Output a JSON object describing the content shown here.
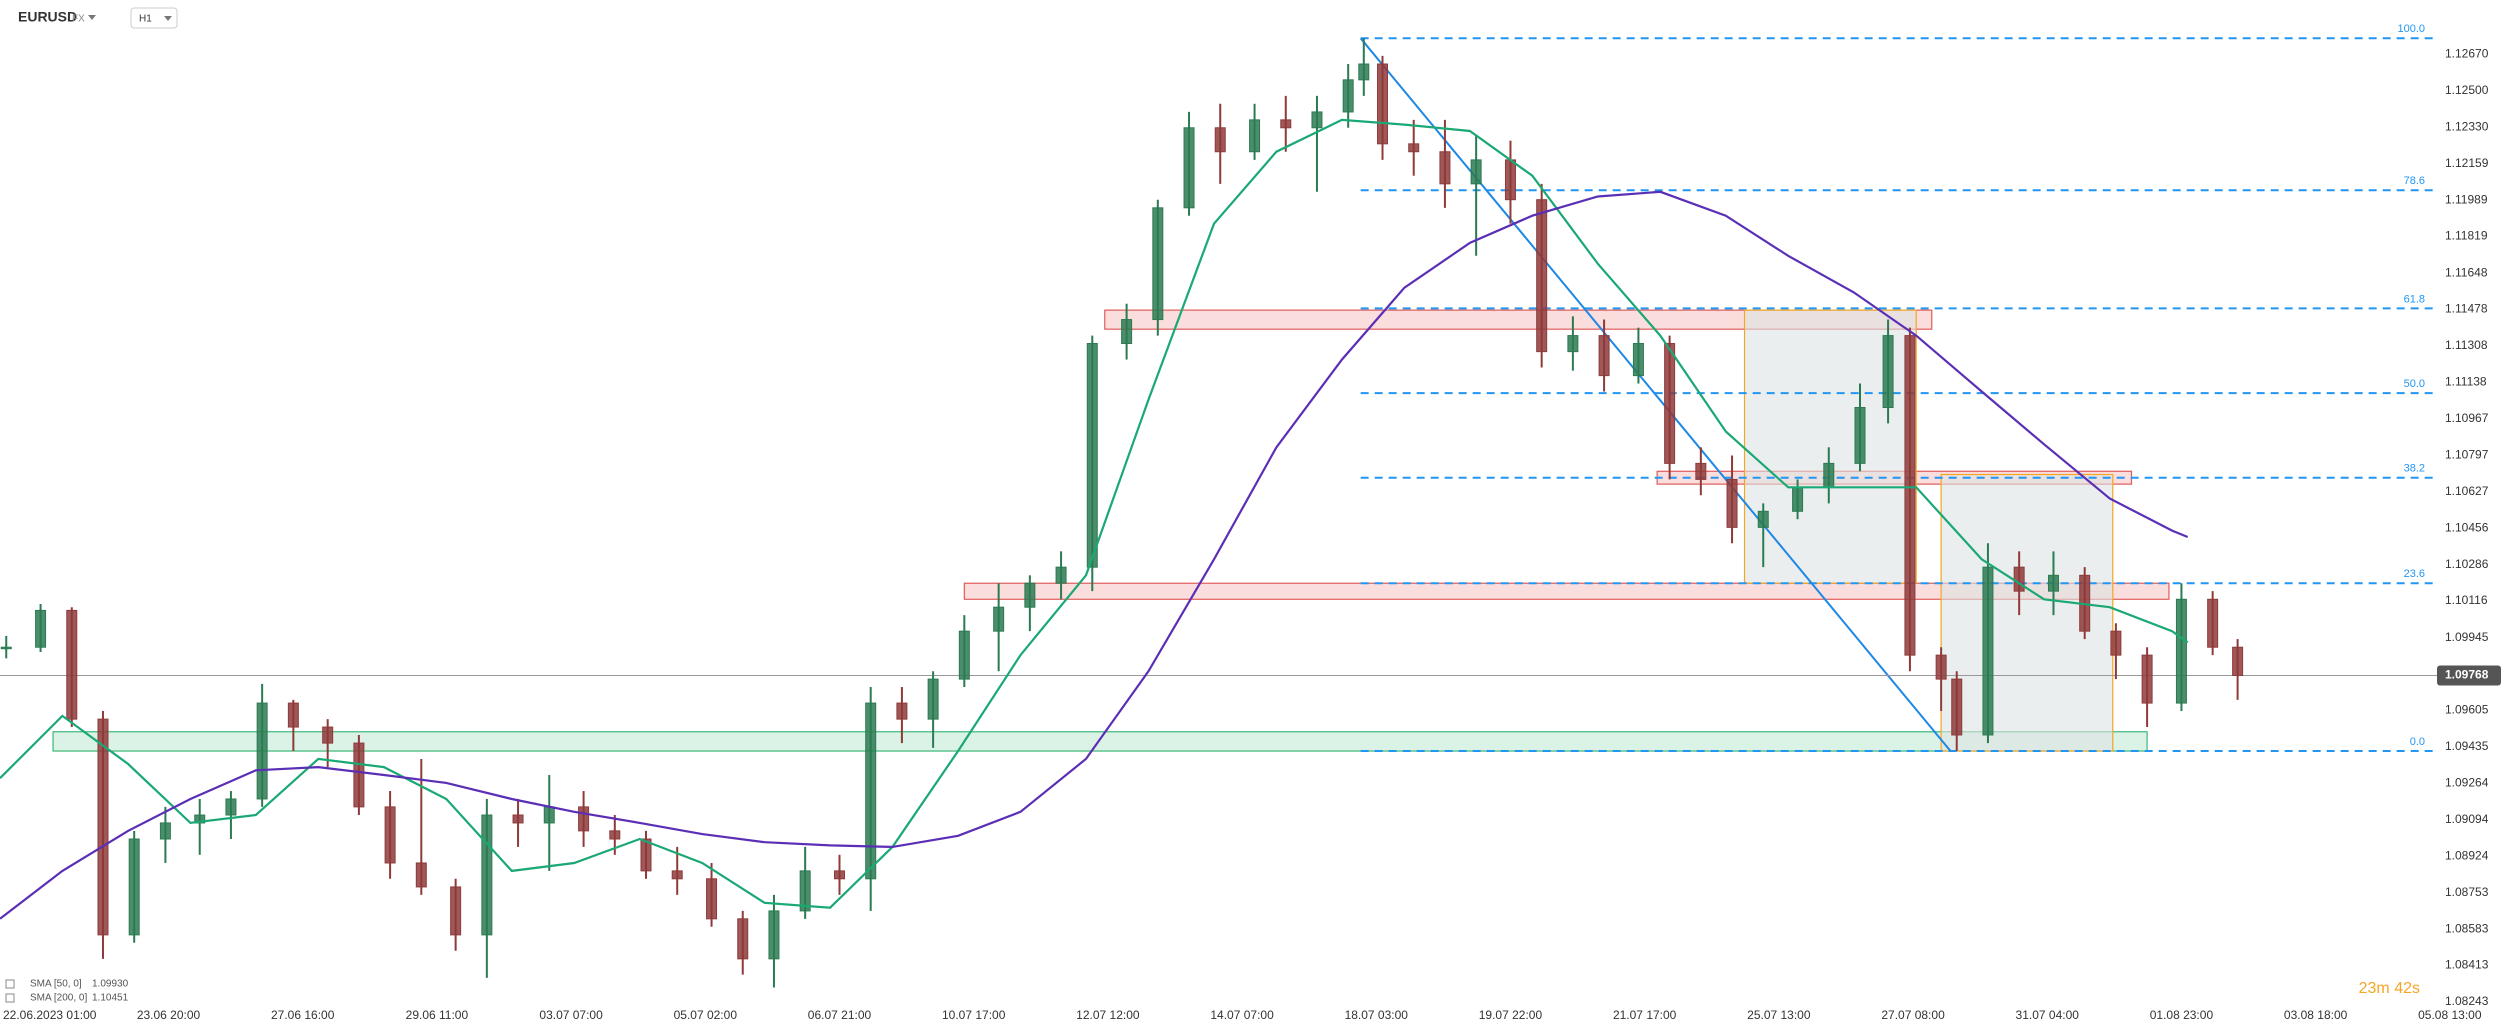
{
  "chart_data": {
    "type": "candlestick",
    "symbol": "EURUSD",
    "market": "FX",
    "timeframe": "H1",
    "up_color": "#2b7a52",
    "down_color": "#8e3a3a",
    "x": [
      -9,
      2,
      12,
      22,
      32,
      42,
      53,
      63,
      73,
      83,
      94,
      104,
      114,
      124,
      135,
      145,
      155,
      165,
      176,
      186,
      196,
      206,
      217,
      227,
      237,
      247,
      258,
      268,
      278,
      288,
      298,
      309,
      319,
      329,
      339,
      350,
      360,
      370,
      380,
      391,
      401,
      411,
      421,
      426,
      432,
      442,
      452,
      462,
      473,
      483,
      493,
      503,
      514,
      524,
      534,
      544,
      554,
      565,
      575,
      585,
      594,
      601,
      611,
      616,
      626,
      636,
      647,
      657,
      667,
      677,
      688,
      698,
      706
    ],
    "open": [
      1.099,
      1.099,
      1.10072,
      1.09564,
      1.08556,
      1.09004,
      1.09079,
      1.09116,
      1.09191,
      1.09639,
      1.09527,
      1.09452,
      1.09154,
      1.08892,
      1.0878,
      1.08556,
      1.09116,
      1.09079,
      1.09154,
      1.09042,
      1.09004,
      1.08855,
      1.08818,
      1.08631,
      1.08444,
      1.08668,
      1.08855,
      1.08818,
      1.09639,
      1.09564,
      1.09751,
      1.09975,
      1.10087,
      1.10199,
      1.10274,
      1.11319,
      1.11431,
      1.11953,
      1.12327,
      1.12215,
      1.12364,
      1.12327,
      1.12401,
      1.12551,
      1.12625,
      1.12252,
      1.12215,
      1.12065,
      1.12177,
      1.11991,
      1.11281,
      1.11356,
      1.11169,
      1.11319,
      1.10759,
      1.10684,
      1.1046,
      1.10535,
      1.10647,
      1.10759,
      1.1102,
      1.11356,
      1.09863,
      1.09751,
      1.0949,
      1.10274,
      1.10162,
      1.10236,
      1.09975,
      1.09863,
      1.09639,
      1.10124,
      1.099
    ],
    "high": [
      1.09953,
      1.10102,
      1.10087,
      1.09602,
      1.09042,
      1.09154,
      1.09191,
      1.09228,
      1.09729,
      1.09654,
      1.09564,
      1.0949,
      1.09228,
      1.09378,
      1.08818,
      1.09191,
      1.09191,
      1.09303,
      1.09228,
      1.09116,
      1.09042,
      1.08967,
      1.08892,
      1.08668,
      1.08743,
      1.08967,
      1.0893,
      1.09714,
      1.09714,
      1.09788,
      1.1005,
      1.10199,
      1.10236,
      1.10348,
      1.11356,
      1.11505,
      1.11991,
      1.12401,
      1.12439,
      1.12439,
      1.12476,
      1.12476,
      1.12625,
      1.12745,
      1.12663,
      1.12364,
      1.12364,
      1.12289,
      1.12267,
      1.12065,
      1.11446,
      1.11431,
      1.11393,
      1.11356,
      1.10834,
      1.10796,
      1.10572,
      1.10684,
      1.10834,
      1.11132,
      1.11431,
      1.11393,
      1.099,
      1.09788,
      1.10386,
      1.10348,
      1.10348,
      1.10274,
      1.10012,
      1.099,
      1.10199,
      1.10162,
      1.09938
    ],
    "low": [
      1.09848,
      1.09878,
      1.09527,
      1.08444,
      1.08519,
      1.08892,
      1.0893,
      1.09004,
      1.09154,
      1.09415,
      1.0934,
      1.09116,
      1.08818,
      1.08743,
      1.08482,
      1.08355,
      1.08967,
      1.08855,
      1.08967,
      1.0893,
      1.08818,
      1.08743,
      1.08594,
      1.0837,
      1.0831,
      1.08631,
      1.08743,
      1.08668,
      1.09452,
      1.0943,
      1.09714,
      1.09788,
      1.09975,
      1.10124,
      1.10162,
      1.11244,
      1.11356,
      1.11916,
      1.12065,
      1.12177,
      1.12215,
      1.12028,
      1.12327,
      1.12476,
      1.12177,
      1.12103,
      1.11953,
      1.11729,
      1.11879,
      1.11207,
      1.11192,
      1.11095,
      1.11132,
      1.10684,
      1.1061,
      1.10386,
      1.10274,
      1.10498,
      1.10572,
      1.10722,
      1.10946,
      1.09788,
      1.09602,
      1.09415,
      1.09452,
      1.1005,
      1.1005,
      1.09938,
      1.09751,
      1.09527,
      1.09602,
      1.09863,
      1.09654
    ],
    "close": [
      1.099,
      1.10072,
      1.09564,
      1.08556,
      1.09004,
      1.09079,
      1.09116,
      1.09191,
      1.09639,
      1.09527,
      1.09452,
      1.09154,
      1.08892,
      1.0878,
      1.08556,
      1.09116,
      1.09079,
      1.09154,
      1.09042,
      1.09004,
      1.08855,
      1.08818,
      1.08631,
      1.08444,
      1.08668,
      1.08855,
      1.08818,
      1.09639,
      1.09564,
      1.09751,
      1.09975,
      1.10087,
      1.10199,
      1.10274,
      1.11319,
      1.11431,
      1.11953,
      1.12327,
      1.12215,
      1.12364,
      1.12327,
      1.12401,
      1.12551,
      1.12625,
      1.12252,
      1.12215,
      1.12065,
      1.12177,
      1.11991,
      1.11281,
      1.11356,
      1.11169,
      1.11319,
      1.10759,
      1.10684,
      1.1046,
      1.10535,
      1.10647,
      1.10759,
      1.1102,
      1.11356,
      1.09863,
      1.09751,
      1.0949,
      1.10274,
      1.10162,
      1.10236,
      1.09975,
      1.09863,
      1.09639,
      1.10124,
      1.099,
      1.09768
    ],
    "indicators": [
      {
        "name": "SMA [50, 0]",
        "color": "#1aa874",
        "legend_value": {
          "value": 1.0993,
          "label": "1.09930"
        },
        "x": [
          -11,
          9,
          30,
          50,
          71,
          91,
          112,
          132,
          153,
          173,
          194,
          214,
          234,
          255,
          275,
          296,
          316,
          337,
          357,
          378,
          398,
          419,
          439,
          460,
          480,
          501,
          521,
          542,
          562,
          583,
          603,
          624,
          644,
          665,
          685,
          690
        ],
        "values": [
          1.09288,
          1.09579,
          1.09355,
          1.09079,
          1.09116,
          1.09378,
          1.0934,
          1.09191,
          1.08855,
          1.08892,
          1.09004,
          1.08892,
          1.08706,
          1.08683,
          1.08967,
          1.09415,
          1.09863,
          1.10236,
          1.11057,
          1.11879,
          1.12215,
          1.12364,
          1.12342,
          1.12312,
          1.12103,
          1.11692,
          1.11356,
          1.10908,
          1.10647,
          1.10647,
          1.10647,
          1.10311,
          1.10124,
          1.10087,
          1.09975,
          1.09923
        ]
      },
      {
        "name": "SMA [200, 0]",
        "color": "#5b2fb5",
        "legend_value": {
          "value": 1.10451,
          "label": "1.10451"
        },
        "x": [
          -11,
          9,
          30,
          50,
          71,
          91,
          112,
          132,
          153,
          173,
          194,
          214,
          234,
          255,
          275,
          296,
          316,
          337,
          357,
          378,
          398,
          419,
          439,
          460,
          480,
          501,
          521,
          542,
          562,
          583,
          603,
          624,
          644,
          665,
          685,
          690
        ],
        "values": [
          1.08631,
          1.08855,
          1.09042,
          1.09191,
          1.09325,
          1.0934,
          1.09303,
          1.09266,
          1.09191,
          1.09131,
          1.09079,
          1.09027,
          1.08989,
          1.08974,
          1.08967,
          1.09019,
          1.09131,
          1.09378,
          1.09788,
          1.10311,
          1.10834,
          1.11244,
          1.1158,
          1.11789,
          1.11916,
          1.12006,
          1.12028,
          1.11916,
          1.11729,
          1.11558,
          1.11356,
          1.11095,
          1.10848,
          1.10595,
          1.10445,
          1.10415
        ]
      }
    ],
    "current_price": {
      "value": 1.09768,
      "label": "1.09768",
      "color": "#555555"
    },
    "fibonacci": {
      "color": "#2196f3",
      "x": [
        425,
        614
      ],
      "levels": [
        {
          "label": "100.0",
          "value": 1.12745
        },
        {
          "label": "78.6",
          "value": 1.12035
        },
        {
          "label": "61.8",
          "value": 1.11483
        },
        {
          "label": "50.0",
          "value": 1.11087
        },
        {
          "label": "38.2",
          "value": 1.10692
        },
        {
          "label": "23.6",
          "value": 1.10199
        },
        {
          "label": "0.0",
          "value": 1.09415
        }
      ]
    },
    "zones": [
      {
        "x": [
          343,
          608
        ],
        "y": [
          1.11386,
          1.11475
        ],
        "color": "#e05c5c",
        "fill": "#f7c6c6"
      },
      {
        "x": [
          298,
          684
        ],
        "y": [
          1.10124,
          1.10199
        ],
        "color": "#e05c5c",
        "fill": "#f7c6c6"
      },
      {
        "x": [
          520,
          672
        ],
        "y": [
          1.10662,
          1.10722
        ],
        "color": "#e05c5c",
        "fill": "#f7c6c6"
      },
      {
        "x": [
          6,
          677
        ],
        "y": [
          1.09415,
          1.09505
        ],
        "color": "#3cb878",
        "fill": "#c3ead5"
      },
      {
        "x": [
          548,
          603
        ],
        "y": [
          1.10199,
          1.11475
        ],
        "color": "#f5a623",
        "fill": "#dde3e3"
      },
      {
        "x": [
          611,
          666
        ],
        "y": [
          1.09415,
          1.10707
        ],
        "color": "#f5a623",
        "fill": "#dde3e3"
      }
    ],
    "xlim": [
      -11,
      792
    ],
    "ylim": [
      1.08205,
      1.12924
    ],
    "grid": false,
    "xticks": [
      {
        "value": 0,
        "label": "22.06.2023 01:00"
      },
      {
        "value": 43,
        "label": "23.06 20:00"
      },
      {
        "value": 86,
        "label": "27.06 16:00"
      },
      {
        "value": 129,
        "label": "29.06 11:00"
      },
      {
        "value": 172,
        "label": "03.07 07:00"
      },
      {
        "value": 215,
        "label": "05.07 02:00"
      },
      {
        "value": 258,
        "label": "06.07 21:00"
      },
      {
        "value": 301,
        "label": "10.07 17:00"
      },
      {
        "value": 344,
        "label": "12.07 12:00"
      },
      {
        "value": 387,
        "label": "14.07 07:00"
      },
      {
        "value": 430,
        "label": "18.07 03:00"
      },
      {
        "value": 473,
        "label": "19.07 22:00"
      },
      {
        "value": 516,
        "label": "21.07 17:00"
      },
      {
        "value": 559,
        "label": "25.07 13:00"
      },
      {
        "value": 602,
        "label": "27.07 08:00"
      },
      {
        "value": 645,
        "label": "31.07 04:00"
      },
      {
        "value": 688,
        "label": "01.08 23:00"
      },
      {
        "value": 731,
        "label": "03.08 18:00"
      },
      {
        "value": 774,
        "label": "05.08 13:00"
      }
    ],
    "yticks": [
      {
        "value": 1.1267,
        "label": "1.12670"
      },
      {
        "value": 1.125,
        "label": "1.12500"
      },
      {
        "value": 1.1233,
        "label": "1.12330"
      },
      1.12159,
      1.11989,
      1.11819,
      1.11648,
      1.11478,
      1.11308,
      1.11138,
      1.10967,
      1.10797,
      1.10627,
      1.10456,
      1.10286,
      1.10116,
      1.09945,
      1.09605,
      1.09435,
      1.09264,
      1.09094,
      1.08924,
      1.08753,
      1.08583,
      1.08413,
      1.08243
    ],
    "countdown": "23m 42s"
  }
}
